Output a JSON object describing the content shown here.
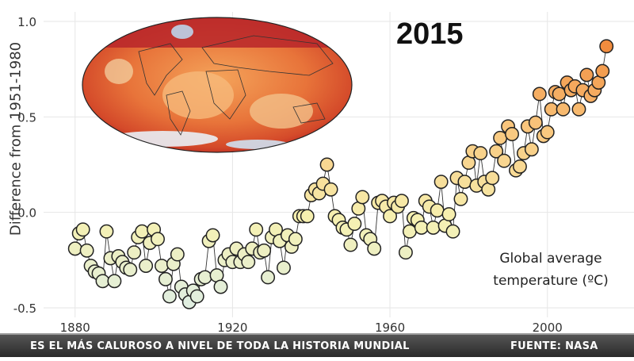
{
  "year": "2015",
  "annotation": "Global average temperature (ºC)",
  "caption": {
    "left": "ES EL MÁS CALUROSO A NIVEL DE TODA LA HISTORIA MUNDIAL",
    "right": "FUENTE: NASA"
  },
  "chart_data": {
    "type": "scatter",
    "ylabel": "Difference from 1951-1980",
    "xlim": [
      1872,
      2022
    ],
    "ylim": [
      -0.55,
      1.05
    ],
    "x_ticks": [
      1880,
      1920,
      1960,
      2000
    ],
    "y_ticks": [
      1.0,
      0.5,
      0.0,
      -0.5
    ],
    "y_tick_labels": [
      "1.0",
      "0.5",
      "0.0",
      "-0.5"
    ],
    "grid": true,
    "connected": true,
    "color_scale": [
      "#dfeee3",
      "#f6f0b0",
      "#f9c77e",
      "#f0883a"
    ],
    "x": [
      1880,
      1881,
      1882,
      1883,
      1884,
      1885,
      1886,
      1887,
      1888,
      1889,
      1890,
      1891,
      1892,
      1893,
      1894,
      1895,
      1896,
      1897,
      1898,
      1899,
      1900,
      1901,
      1902,
      1903,
      1904,
      1905,
      1906,
      1907,
      1908,
      1909,
      1910,
      1911,
      1912,
      1913,
      1914,
      1915,
      1916,
      1917,
      1918,
      1919,
      1920,
      1921,
      1922,
      1923,
      1924,
      1925,
      1926,
      1927,
      1928,
      1929,
      1930,
      1931,
      1932,
      1933,
      1934,
      1935,
      1936,
      1937,
      1938,
      1939,
      1940,
      1941,
      1942,
      1943,
      1944,
      1945,
      1946,
      1947,
      1948,
      1949,
      1950,
      1951,
      1952,
      1953,
      1954,
      1955,
      1956,
      1957,
      1958,
      1959,
      1960,
      1961,
      1962,
      1963,
      1964,
      1965,
      1966,
      1967,
      1968,
      1969,
      1970,
      1971,
      1972,
      1973,
      1974,
      1975,
      1976,
      1977,
      1978,
      1979,
      1980,
      1981,
      1982,
      1983,
      1984,
      1985,
      1986,
      1987,
      1988,
      1989,
      1990,
      1991,
      1992,
      1993,
      1994,
      1995,
      1996,
      1997,
      1998,
      1999,
      2000,
      2001,
      2002,
      2003,
      2004,
      2005,
      2006,
      2007,
      2008,
      2009,
      2010,
      2011,
      2012,
      2013,
      2014,
      2015
    ],
    "y": [
      -0.19,
      -0.11,
      -0.09,
      -0.2,
      -0.28,
      -0.31,
      -0.32,
      -0.36,
      -0.1,
      -0.24,
      -0.36,
      -0.23,
      -0.26,
      -0.29,
      -0.3,
      -0.21,
      -0.13,
      -0.1,
      -0.28,
      -0.16,
      -0.09,
      -0.14,
      -0.28,
      -0.35,
      -0.44,
      -0.27,
      -0.22,
      -0.39,
      -0.43,
      -0.47,
      -0.41,
      -0.44,
      -0.35,
      -0.34,
      -0.15,
      -0.12,
      -0.33,
      -0.39,
      -0.25,
      -0.22,
      -0.26,
      -0.19,
      -0.26,
      -0.22,
      -0.26,
      -0.19,
      -0.09,
      -0.21,
      -0.2,
      -0.34,
      -0.13,
      -0.09,
      -0.15,
      -0.29,
      -0.12,
      -0.18,
      -0.14,
      -0.02,
      -0.02,
      -0.02,
      0.09,
      0.12,
      0.1,
      0.15,
      0.25,
      0.12,
      -0.02,
      -0.04,
      -0.08,
      -0.09,
      -0.17,
      -0.06,
      0.02,
      0.08,
      -0.12,
      -0.14,
      -0.19,
      0.05,
      0.06,
      0.03,
      -0.02,
      0.05,
      0.03,
      0.06,
      -0.21,
      -0.1,
      -0.03,
      -0.04,
      -0.08,
      0.06,
      0.03,
      -0.08,
      0.01,
      0.16,
      -0.07,
      -0.01,
      -0.1,
      0.18,
      0.07,
      0.16,
      0.26,
      0.32,
      0.14,
      0.31,
      0.16,
      0.12,
      0.18,
      0.32,
      0.39,
      0.27,
      0.45,
      0.41,
      0.22,
      0.24,
      0.31,
      0.45,
      0.33,
      0.47,
      0.62,
      0.4,
      0.42,
      0.54,
      0.63,
      0.62,
      0.54,
      0.68,
      0.64,
      0.66,
      0.54,
      0.64,
      0.72,
      0.61,
      0.64,
      0.68,
      0.74,
      0.87
    ]
  }
}
